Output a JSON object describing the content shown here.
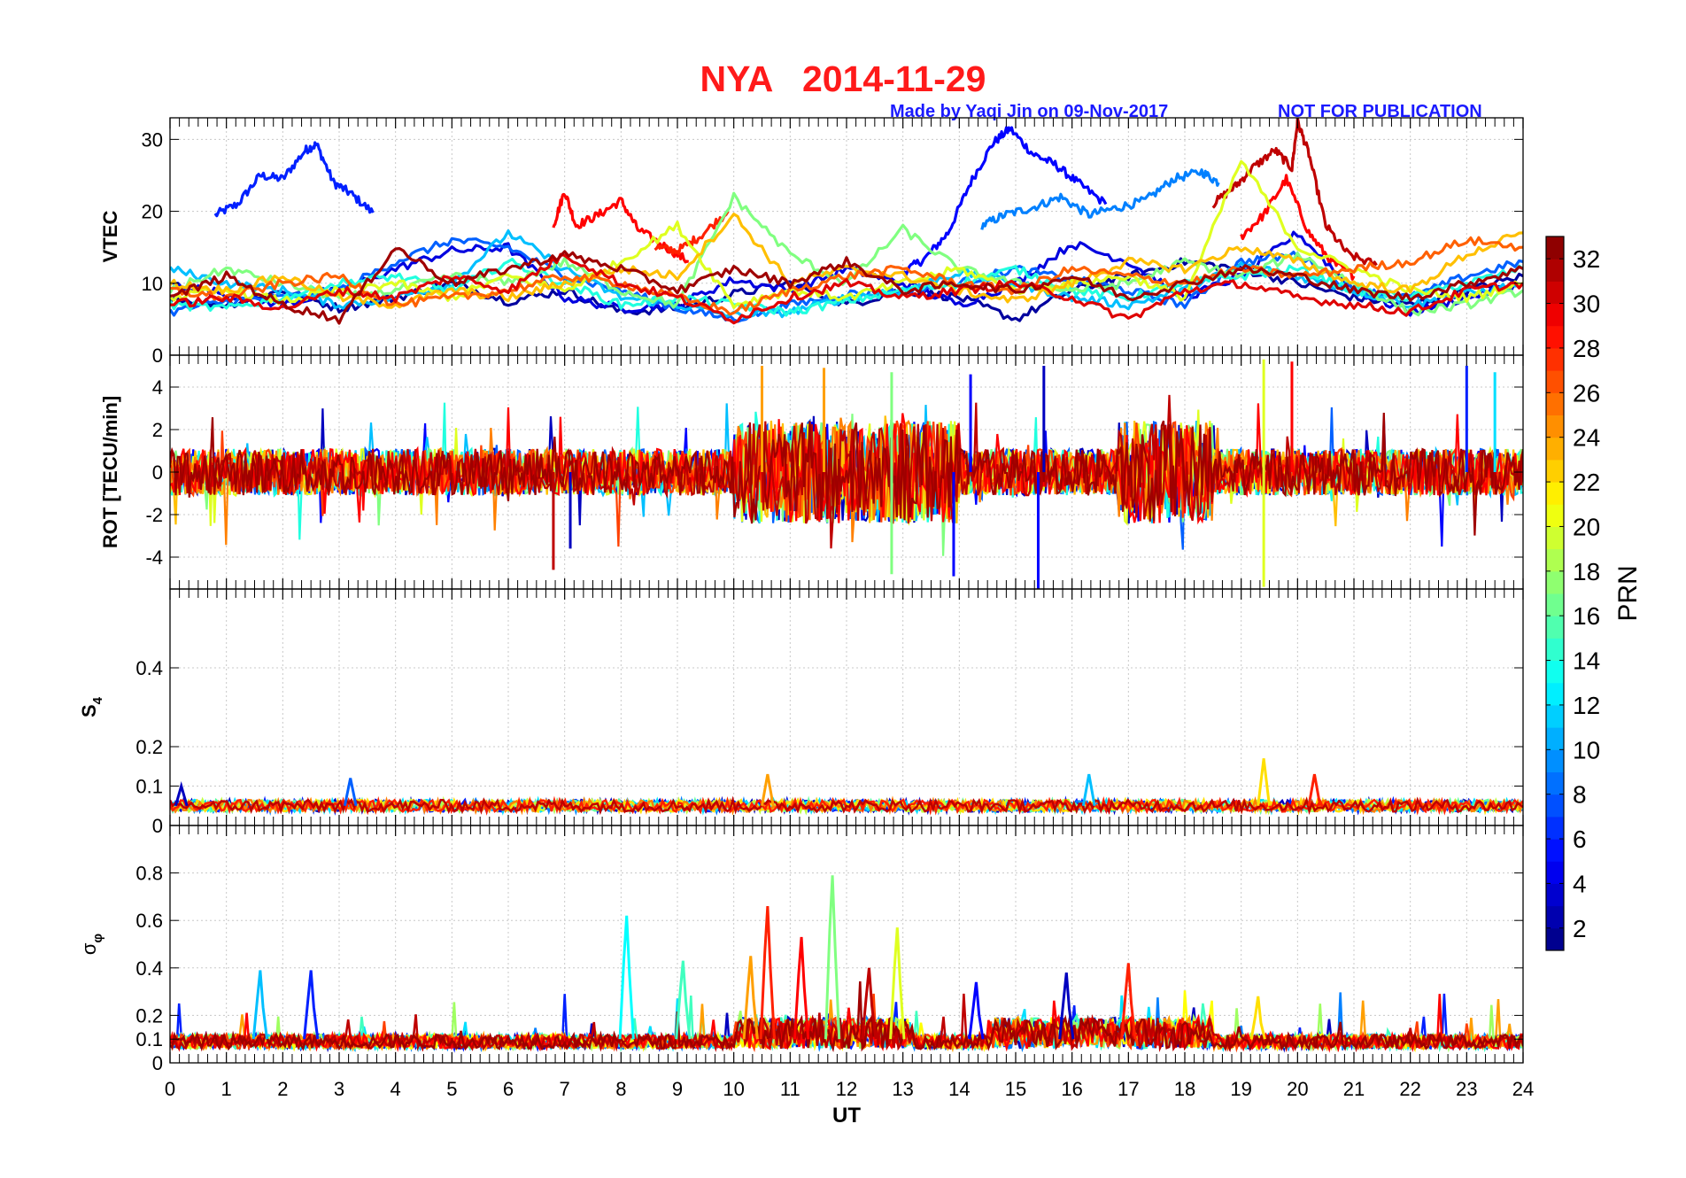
{
  "header": {
    "station": "NYA",
    "date": "2014-11-29",
    "credit": "Made by Yaqi Jin on 09-Nov-2017",
    "notice": "NOT FOR PUBLICATION"
  },
  "chart_data": [
    {
      "type": "line",
      "panel": "vtec",
      "ylabel": "VTEC",
      "xlabel": "",
      "xlim": [
        0,
        24
      ],
      "ylim": [
        0,
        33
      ],
      "yticks": [
        0,
        10,
        20,
        30
      ],
      "grid": true,
      "series": [
        {
          "prn": 6,
          "x": [
            0.8,
            1.2,
            1.6,
            2.0,
            2.4,
            2.6,
            2.9,
            3.2,
            3.6
          ],
          "y": [
            19.5,
            21,
            25,
            24.5,
            28.5,
            29.3,
            24,
            22.5,
            19.8
          ]
        },
        {
          "prn": 5,
          "x": [
            13.0,
            13.4,
            13.8,
            14.2,
            14.6,
            14.9,
            15.3,
            15.7,
            16.1,
            16.6
          ],
          "y": [
            11.5,
            13.5,
            17,
            24,
            29.5,
            31.5,
            28,
            26.5,
            24,
            21
          ]
        },
        {
          "prn": 9,
          "x": [
            14.4,
            14.8,
            15.3,
            15.8,
            16.3,
            16.8,
            17.3,
            17.8,
            18.3,
            18.6
          ],
          "y": [
            18,
            19.5,
            20.5,
            22,
            19.5,
            20.5,
            21.5,
            24.5,
            25.5,
            24
          ]
        },
        {
          "prn": 29,
          "x": [
            6.8,
            7.0,
            7.2,
            7.6,
            8.0,
            8.3,
            8.8,
            9.2
          ],
          "y": [
            18,
            22.8,
            18,
            19.5,
            21.5,
            17.5,
            15,
            13
          ]
        },
        {
          "prn": 28,
          "x": [
            8.6,
            9.0,
            9.4,
            9.9
          ],
          "y": [
            15,
            14.5,
            16.5,
            20
          ]
        },
        {
          "prn": 31,
          "x": [
            18.5,
            18.9,
            19.2,
            19.6,
            19.9,
            20.0,
            20.2,
            20.5,
            20.9,
            21.4
          ],
          "y": [
            21,
            23.5,
            26,
            28.5,
            26,
            32.5,
            28,
            18,
            14,
            12.5
          ]
        },
        {
          "prn": 29,
          "x": [
            19.0,
            19.4,
            19.8,
            20.2,
            20.6,
            21.0
          ],
          "y": [
            16.5,
            19.5,
            24.5,
            17,
            13,
            11
          ]
        },
        {
          "prn": 2,
          "x": [
            0.0,
            1.0,
            2.0,
            3.0,
            4.0,
            5.0,
            6.0,
            7.0,
            8.0,
            9.0,
            10.0,
            11.0,
            12.0,
            13.0,
            14.0,
            15.0,
            16.0,
            17.0,
            18.0,
            19.0,
            20.0,
            21.0,
            22.0,
            23.0,
            24.0
          ],
          "y": [
            8,
            7,
            9,
            6.5,
            8,
            10,
            7.5,
            9,
            6,
            6.5,
            8.5,
            10,
            7,
            9,
            8,
            5,
            9,
            11,
            13,
            12,
            10,
            8,
            7,
            9,
            11
          ]
        },
        {
          "prn": 4,
          "x": [
            0.0,
            1.0,
            2.0,
            3.0,
            4.0,
            5.0,
            6.0,
            7.0,
            8.0,
            9.0,
            10.0,
            11.0,
            12.0,
            13.0,
            14.0,
            15.0,
            16.0,
            17.0,
            18.0,
            19.0,
            20.0,
            21.0,
            22.0,
            23.0,
            24.0
          ],
          "y": [
            10,
            8.5,
            7,
            9,
            12,
            14.5,
            15,
            8,
            6.5,
            7,
            10.5,
            9,
            12,
            10,
            7,
            10,
            15.5,
            13,
            8,
            11,
            17,
            9,
            6,
            8,
            10
          ]
        },
        {
          "prn": 8,
          "x": [
            0.0,
            1.0,
            2.0,
            3.0,
            4.0,
            5.0,
            6.0,
            7.0,
            8.0,
            9.0,
            10.0,
            11.0,
            12.0,
            13.0,
            14.0,
            15.0,
            16.0,
            17.0,
            18.0,
            19.0,
            20.0,
            21.0,
            22.0,
            23.0,
            24.0
          ],
          "y": [
            6,
            7.5,
            8,
            9,
            13,
            16,
            15,
            11,
            9,
            6.5,
            5,
            7,
            8.5,
            9,
            10,
            12,
            10.5,
            9,
            7,
            13,
            14,
            9,
            8,
            11,
            13
          ]
        },
        {
          "prn": 11,
          "x": [
            0.0,
            1.0,
            2.0,
            3.0,
            4.0,
            5.0,
            6.0,
            7.0,
            8.0,
            9.0,
            10.0,
            11.0,
            12.0,
            13.0,
            14.0,
            15.0,
            16.0,
            17.0,
            18.0,
            19.0,
            20.0,
            21.0,
            22.0,
            23.0,
            24.0
          ],
          "y": [
            12,
            10,
            9,
            7,
            8,
            10,
            17,
            12,
            8,
            7,
            5.5,
            6,
            8,
            9,
            11.5,
            10,
            8,
            7,
            9,
            12.5,
            11,
            9,
            7,
            8.5,
            10
          ]
        },
        {
          "prn": 14,
          "x": [
            0.0,
            1.0,
            2.0,
            3.0,
            4.0,
            5.0,
            6.0,
            7.0,
            8.0,
            9.0,
            10.0,
            11.0,
            12.0,
            13.0,
            14.0,
            15.0,
            16.0,
            17.0,
            18.0,
            19.0,
            20.0,
            21.0,
            22.0,
            23.0,
            24.0
          ],
          "y": [
            7,
            6.5,
            8,
            10,
            11,
            9,
            13,
            10,
            7,
            8,
            7,
            6,
            7.5,
            9,
            10,
            12,
            9,
            8,
            10,
            11,
            12,
            9,
            8,
            10,
            12
          ]
        },
        {
          "prn": 17,
          "x": [
            0.0,
            1.0,
            2.0,
            3.0,
            4.0,
            5.0,
            6.0,
            7.0,
            8.0,
            9.0,
            10.0,
            11.0,
            12.0,
            13.0,
            14.0,
            15.0,
            16.0,
            17.0,
            18.0,
            19.0,
            20.0,
            21.0,
            22.0,
            23.0,
            24.0
          ],
          "y": [
            9,
            12,
            10,
            8,
            9,
            11,
            10,
            13,
            9,
            7,
            22,
            14,
            10,
            17.5,
            12,
            10,
            9,
            10,
            13,
            11,
            14,
            10,
            6,
            7,
            9
          ]
        },
        {
          "prn": 20,
          "x": [
            0.0,
            1.0,
            2.0,
            3.0,
            4.0,
            5.0,
            6.0,
            7.0,
            8.0,
            9.0,
            10.0,
            11.0,
            12.0,
            13.0,
            14.0,
            15.0,
            16.0,
            17.0,
            18.0,
            19.0,
            20.0,
            21.0,
            22.0,
            23.0,
            24.0
          ],
          "y": [
            8,
            9,
            7.5,
            9,
            10,
            8,
            11,
            9,
            13,
            18,
            7,
            9,
            8,
            10,
            12,
            9,
            10,
            11,
            8,
            27,
            15,
            12,
            9,
            8,
            10
          ]
        },
        {
          "prn": 23,
          "x": [
            0.0,
            1.0,
            2.0,
            3.0,
            4.0,
            5.0,
            6.0,
            7.0,
            8.0,
            9.0,
            10.0,
            11.0,
            12.0,
            13.0,
            14.0,
            15.0,
            16.0,
            17.0,
            18.0,
            19.0,
            20.0,
            21.0,
            22.0,
            23.0,
            24.0
          ],
          "y": [
            10,
            9,
            11,
            8,
            7,
            9,
            8,
            10,
            12,
            11,
            19.5,
            10,
            12,
            11,
            9,
            7.5,
            10,
            13,
            12,
            15,
            13,
            10,
            9,
            14,
            17
          ]
        },
        {
          "prn": 26,
          "x": [
            0.0,
            1.0,
            2.0,
            3.0,
            4.0,
            5.0,
            6.0,
            7.0,
            8.0,
            9.0,
            10.0,
            11.0,
            12.0,
            13.0,
            14.0,
            15.0,
            16.0,
            17.0,
            18.0,
            19.0,
            20.0,
            21.0,
            22.0,
            23.0,
            24.0
          ],
          "y": [
            9,
            8,
            10,
            11,
            7,
            8,
            9,
            11,
            10,
            8,
            6,
            9,
            11,
            12,
            10,
            9,
            12,
            11,
            10,
            12,
            11,
            12,
            13,
            16,
            15
          ]
        },
        {
          "prn": 30,
          "x": [
            0.0,
            1.0,
            2.0,
            3.0,
            4.0,
            5.0,
            6.0,
            7.0,
            8.0,
            9.0,
            10.0,
            11.0,
            12.0,
            13.0,
            14.0,
            15.0,
            16.0,
            17.0,
            18.0,
            19.0,
            20.0,
            21.0,
            22.0,
            23.0,
            24.0
          ],
          "y": [
            7,
            8,
            6.5,
            9,
            8,
            11,
            9,
            14,
            10,
            8,
            5,
            8,
            10,
            8,
            9,
            10,
            8,
            5,
            9,
            10,
            8,
            7,
            6,
            9,
            10
          ]
        },
        {
          "prn": 32,
          "x": [
            0.0,
            1.0,
            2.0,
            3.0,
            4.0,
            5.0,
            6.0,
            7.0,
            8.0,
            9.0,
            10.0,
            11.0,
            12.0,
            13.0,
            14.0,
            15.0,
            16.0,
            17.0,
            18.0,
            19.0,
            20.0,
            21.0,
            22.0,
            23.0,
            24.0
          ],
          "y": [
            8,
            11,
            7,
            5,
            15,
            10,
            12,
            14,
            12,
            9,
            12,
            10,
            13,
            9,
            10,
            9,
            11,
            8,
            10,
            12,
            11,
            9,
            8,
            10,
            12
          ]
        }
      ]
    },
    {
      "type": "line",
      "panel": "rot",
      "ylabel": "ROT [TECU/min]",
      "xlabel": "",
      "xlim": [
        0,
        24
      ],
      "ylim": [
        -5.5,
        5.5
      ],
      "yticks": [
        -4,
        -2,
        0,
        2,
        4
      ],
      "grid": true,
      "spikes": [
        {
          "prn": 5,
          "x": 15.4,
          "y": -5.5
        },
        {
          "prn": 3,
          "x": 15.5,
          "y": 5.0
        },
        {
          "prn": 20,
          "x": 19.4,
          "y": 5.3
        },
        {
          "prn": 20,
          "x": 19.4,
          "y": -5.4
        },
        {
          "prn": 29,
          "x": 19.9,
          "y": 5.2
        },
        {
          "prn": 24,
          "x": 10.5,
          "y": 5.0
        },
        {
          "prn": 24,
          "x": 11.6,
          "y": 4.9
        },
        {
          "prn": 17,
          "x": 12.8,
          "y": 4.7
        },
        {
          "prn": 17,
          "x": 12.8,
          "y": -4.8
        },
        {
          "prn": 5,
          "x": 14.2,
          "y": 4.6
        },
        {
          "prn": 5,
          "x": 13.9,
          "y": -4.9
        },
        {
          "prn": 31,
          "x": 6.8,
          "y": -4.6
        },
        {
          "prn": 6,
          "x": 23.0,
          "y": 5.0
        },
        {
          "prn": 12,
          "x": 23.5,
          "y": 4.7
        },
        {
          "prn": 3,
          "x": 7.1,
          "y": -3.6
        }
      ]
    },
    {
      "type": "line",
      "panel": "s4",
      "ylabel": "S4",
      "xlabel": "",
      "xlim": [
        0,
        24
      ],
      "ylim": [
        0,
        0.6
      ],
      "yticks": [
        0,
        0.1,
        0.2,
        0.4
      ],
      "grid": true,
      "peaks": [
        {
          "prn": 3,
          "x": 0.2,
          "y": 0.1
        },
        {
          "prn": 8,
          "x": 3.2,
          "y": 0.12
        },
        {
          "prn": 24,
          "x": 10.6,
          "y": 0.13
        },
        {
          "prn": 11,
          "x": 16.3,
          "y": 0.13
        },
        {
          "prn": 22,
          "x": 19.4,
          "y": 0.17
        },
        {
          "prn": 28,
          "x": 20.3,
          "y": 0.13
        }
      ]
    },
    {
      "type": "line",
      "panel": "sigma_phi",
      "ylabel": "σφ",
      "xlabel": "UT",
      "xlim": [
        0,
        24
      ],
      "ylim": [
        0,
        1.0
      ],
      "yticks": [
        0,
        0.1,
        0.2,
        0.4,
        0.6,
        0.8
      ],
      "xticks": [
        0,
        1,
        2,
        3,
        4,
        5,
        6,
        7,
        8,
        9,
        10,
        11,
        12,
        13,
        14,
        15,
        16,
        17,
        18,
        19,
        20,
        21,
        22,
        23,
        24
      ],
      "grid": true,
      "peaks": [
        {
          "prn": 13,
          "x": 8.1,
          "y": 0.62
        },
        {
          "prn": 15,
          "x": 9.1,
          "y": 0.43
        },
        {
          "prn": 24,
          "x": 10.3,
          "y": 0.45
        },
        {
          "prn": 28,
          "x": 10.6,
          "y": 0.66
        },
        {
          "prn": 29,
          "x": 11.2,
          "y": 0.53
        },
        {
          "prn": 17,
          "x": 11.75,
          "y": 0.79
        },
        {
          "prn": 20,
          "x": 12.9,
          "y": 0.57
        },
        {
          "prn": 31,
          "x": 12.4,
          "y": 0.4
        },
        {
          "prn": 6,
          "x": 2.5,
          "y": 0.39
        },
        {
          "prn": 11,
          "x": 1.6,
          "y": 0.39
        },
        {
          "prn": 5,
          "x": 14.3,
          "y": 0.34
        },
        {
          "prn": 3,
          "x": 15.9,
          "y": 0.38
        },
        {
          "prn": 28,
          "x": 17.0,
          "y": 0.42
        },
        {
          "prn": 22,
          "x": 19.3,
          "y": 0.28
        }
      ]
    }
  ],
  "colorbar": {
    "label": "PRN",
    "min": 1,
    "max": 33,
    "ticks": [
      2,
      4,
      6,
      8,
      10,
      12,
      14,
      16,
      18,
      20,
      22,
      24,
      26,
      28,
      30,
      32
    ],
    "colormap": "jet"
  }
}
